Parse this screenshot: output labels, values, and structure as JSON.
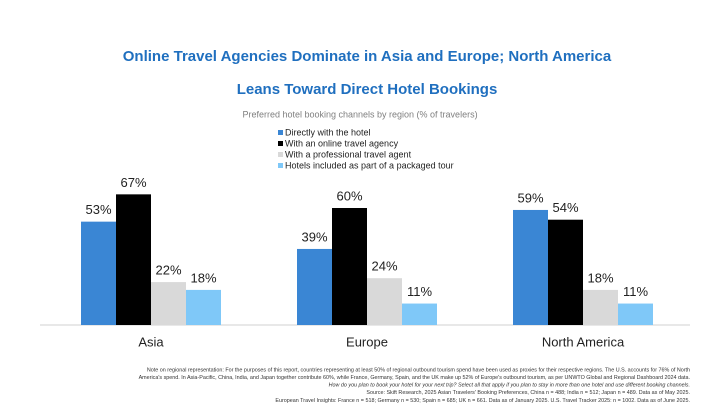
{
  "chart_data": {
    "type": "bar",
    "title_lines": [
      "Online Travel Agencies Dominate in Asia and Europe; North America",
      "Leans Toward Direct Hotel Bookings"
    ],
    "subtitle": "Preferred hotel booking channels by region (% of travelers)",
    "categories": [
      "Asia",
      "Europe",
      "North America"
    ],
    "series": [
      {
        "name": "Directly with the hotel",
        "color": "#3a86d4",
        "values": [
          53,
          39,
          59
        ],
        "value_labels": [
          "53%",
          "39%",
          "59%"
        ]
      },
      {
        "name": "With an online travel agency",
        "color": "#000000",
        "values": [
          67,
          60,
          54
        ],
        "value_labels": [
          "67%",
          "60%",
          "54%"
        ]
      },
      {
        "name": "With a professional travel agent",
        "color": "#d9d9d9",
        "values": [
          22,
          24,
          18
        ],
        "value_labels": [
          "22%",
          "24%",
          "18%"
        ]
      },
      {
        "name": "Hotels included as part of a packaged tour",
        "color": "#7fc8f8",
        "values": [
          18,
          11,
          11
        ],
        "value_labels": [
          "18%",
          "11%",
          "11%"
        ]
      }
    ],
    "notes": [
      "Note on regional representation: For the purposes of this report, countries representing at least 50% of regional outbound tourism spend have been used as proxies for their respective regions. The U.S. accounts for 76% of North",
      "America's spend. In Asia-Pacific, China, India, and Japan together contribute 60%, while France, Germany, Spain, and the UK make up 52% of Europe's outbound tourism, as per UNWTO Global and Regional Dashboard 2024 data.",
      "How do you plan to book your hotel for your next trip? Select all that apply if you plan to stay in more than one hotel and use different booking channels.",
      "Source: Skift Research, 2025 Asian Travelers' Booking Preferences, China n = 488; India n = 512; Japan n = 489. Data as of May 2025.",
      "European Travel Insights: France n = 518; Germany n = 530; Spain n = 685; UK n = 661. Data as of January 2025. U.S. Travel Tracker 2025: n = 1002. Data as of June 2025."
    ]
  }
}
